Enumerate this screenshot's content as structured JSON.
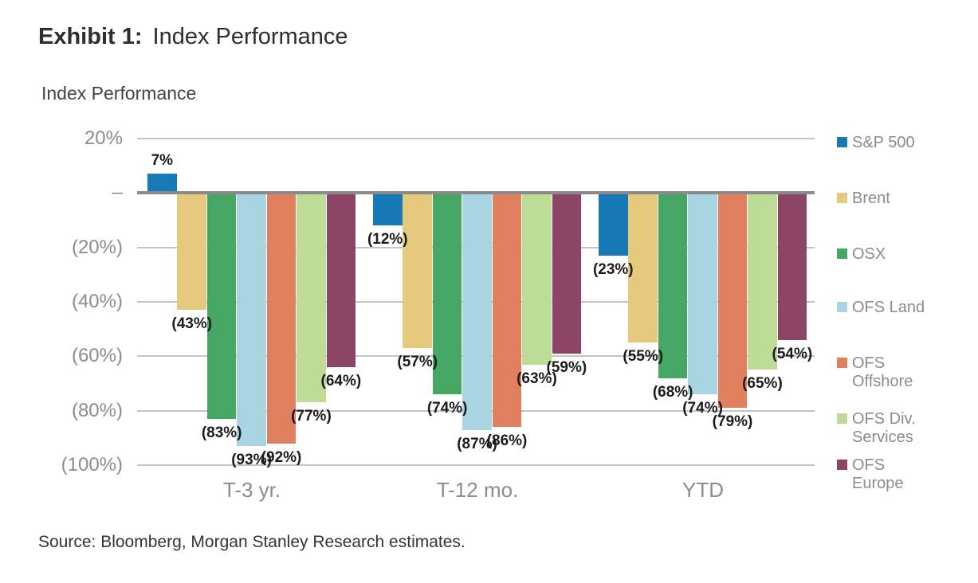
{
  "header": {
    "exhibit_label": "Exhibit 1:",
    "exhibit_title": "Index Performance"
  },
  "chart": {
    "title": "Index Performance"
  },
  "footer": {
    "source": "Source: Bloomberg, Morgan Stanley Research estimates."
  },
  "chart_data": {
    "type": "bar",
    "title": "Index Performance",
    "categories": [
      "T-3 yr.",
      "T-12 mo.",
      "YTD"
    ],
    "series": [
      {
        "name": "S&P 500",
        "color": "#1779b5",
        "values": [
          7,
          -12,
          -23
        ],
        "labels": [
          "7%",
          "(12%)",
          "(23%)"
        ]
      },
      {
        "name": "Brent",
        "color": "#e5c97c",
        "values": [
          -43,
          -57,
          -55
        ],
        "labels": [
          "(43%)",
          "(57%)",
          "(55%)"
        ]
      },
      {
        "name": "OSX",
        "color": "#46a663",
        "values": [
          -83,
          -74,
          -68
        ],
        "labels": [
          "(83%)",
          "(74%)",
          "(68%)"
        ]
      },
      {
        "name": "OFS Land",
        "color": "#a9d5e2",
        "values": [
          -93,
          -87,
          -74
        ],
        "labels": [
          "(93%)",
          "(87%)",
          "(74%)"
        ]
      },
      {
        "name": "OFS Offshore",
        "color": "#e0805e",
        "values": [
          -92,
          -86,
          -79
        ],
        "labels": [
          "(92%)",
          "(86%)",
          "(79%)"
        ]
      },
      {
        "name": "OFS Div. Services",
        "color": "#bedc97",
        "values": [
          -77,
          -63,
          -65
        ],
        "labels": [
          "(77%)",
          "(63%)",
          "(65%)"
        ]
      },
      {
        "name": "OFS Europe",
        "color": "#8d4566",
        "values": [
          -64,
          -59,
          -54
        ],
        "labels": [
          "(64%)",
          "(59%)",
          "(54%)"
        ]
      }
    ],
    "legend_labels": [
      "S&P 500",
      "Brent",
      "OSX",
      "OFS Land",
      "OFS\nOffshore",
      "OFS Div.\nServices",
      "OFS\nEurope"
    ],
    "y_ticks": [
      "20%",
      "–",
      "(20%)",
      "(40%)",
      "(60%)",
      "(80%)",
      "(100%)"
    ],
    "y_tick_values": [
      20,
      0,
      -20,
      -40,
      -60,
      -80,
      -100
    ],
    "ylim": [
      -100,
      20
    ],
    "xlabel": "",
    "ylabel": "",
    "grid": true,
    "legend_position": "right",
    "value_label_style": "bold, negatives in parentheses",
    "colors": {
      "gridline": "#c3c3c3",
      "zero_line": "#8a8a8a",
      "axis_text": "#8c8c8c",
      "value_text": "#1b1b1b"
    }
  }
}
